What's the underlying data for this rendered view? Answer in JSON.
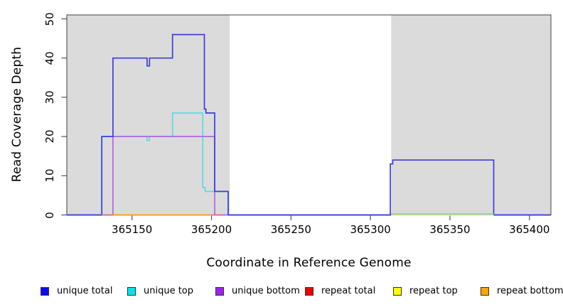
{
  "chart_data": {
    "type": "line",
    "subtype": "step-coverage",
    "title": "",
    "xlabel": "Coordinate in Reference Genome",
    "ylabel": "Read Coverage Depth",
    "x_ticks": [
      365150,
      365200,
      365250,
      365300,
      365350,
      365400
    ],
    "y_ticks": [
      0,
      10,
      20,
      30,
      40,
      50
    ],
    "xlim": [
      365109,
      365413.5
    ],
    "ylim": [
      0,
      51
    ],
    "grid": false,
    "legend_position": "bottom",
    "plot_background": "#FFFFFF",
    "shaded_regions": [
      {
        "name": "shaded-region-left",
        "x1": 365109,
        "x2": 365211.5,
        "color": "#DBDBDB"
      },
      {
        "name": "shaded-region-right",
        "x1": 365313,
        "x2": 365413.2,
        "color": "#DBDBDB"
      }
    ],
    "series": [
      {
        "name": "unique top",
        "color": "#5FD9E6",
        "points": [
          [
            365109,
            0
          ],
          [
            365131,
            0
          ],
          [
            365131,
            20
          ],
          [
            365159.5,
            20
          ],
          [
            365159.5,
            19
          ],
          [
            365161,
            19
          ],
          [
            365161,
            20
          ],
          [
            365175.5,
            20
          ],
          [
            365175.5,
            26
          ],
          [
            365194.5,
            26
          ],
          [
            365194.5,
            7
          ],
          [
            365196,
            7
          ],
          [
            365196,
            6
          ],
          [
            365210.5,
            6
          ],
          [
            365210.5,
            0
          ],
          [
            365413.5,
            0
          ]
        ]
      },
      {
        "name": "unique bottom",
        "color": "#B266E2",
        "points": [
          [
            365109,
            0
          ],
          [
            365138,
            0
          ],
          [
            365138,
            20
          ],
          [
            365202,
            20
          ],
          [
            365202,
            0
          ],
          [
            365413.5,
            0
          ]
        ]
      },
      {
        "name": "unique total",
        "color": "#3D3DE0",
        "points": [
          [
            365109,
            0
          ],
          [
            365131,
            0
          ],
          [
            365131,
            20
          ],
          [
            365138,
            20
          ],
          [
            365138,
            40
          ],
          [
            365159.5,
            40
          ],
          [
            365159.5,
            38
          ],
          [
            365161,
            38
          ],
          [
            365161,
            40
          ],
          [
            365175.5,
            40
          ],
          [
            365175.5,
            46
          ],
          [
            365195.5,
            46
          ],
          [
            365195.5,
            27
          ],
          [
            365196.5,
            27
          ],
          [
            365196.5,
            26
          ],
          [
            365202,
            26
          ],
          [
            365202,
            6
          ],
          [
            365210.5,
            6
          ],
          [
            365210.5,
            0
          ],
          [
            365312.5,
            0
          ],
          [
            365312.5,
            13
          ],
          [
            365314,
            13
          ],
          [
            365314,
            14
          ],
          [
            365377.5,
            14
          ],
          [
            365377.5,
            0
          ],
          [
            365413.5,
            0
          ]
        ]
      },
      {
        "name": "repeat total",
        "color": "#E26E80",
        "points": [
          [
            365131,
            0
          ],
          [
            365206.5,
            0
          ]
        ]
      },
      {
        "name": "repeat top",
        "color": "#F0EAB4",
        "points": [
          [
            365313,
            0
          ],
          [
            365377.5,
            0
          ]
        ]
      },
      {
        "name": "repeat bottom",
        "color": "#FF9F1C",
        "points": [
          [
            365138,
            0
          ],
          [
            365200,
            0
          ]
        ]
      }
    ],
    "overlap_artifact": {
      "x1": 365313,
      "x2": 365377.5,
      "y": 0,
      "color": "#85CB85",
      "note": "green segment rendered on zero line inside right shaded region"
    }
  },
  "legend": {
    "items": [
      {
        "label": "unique total",
        "swatch": "#0B0BEE"
      },
      {
        "label": "unique top",
        "swatch": "#00E5EE"
      },
      {
        "label": "unique bottom",
        "swatch": "#A020F0"
      },
      {
        "label": "repeat total",
        "swatch": "#EE0000"
      },
      {
        "label": "repeat top",
        "swatch": "#FFFF00"
      },
      {
        "label": "repeat bottom",
        "swatch": "#FFA500"
      }
    ]
  }
}
